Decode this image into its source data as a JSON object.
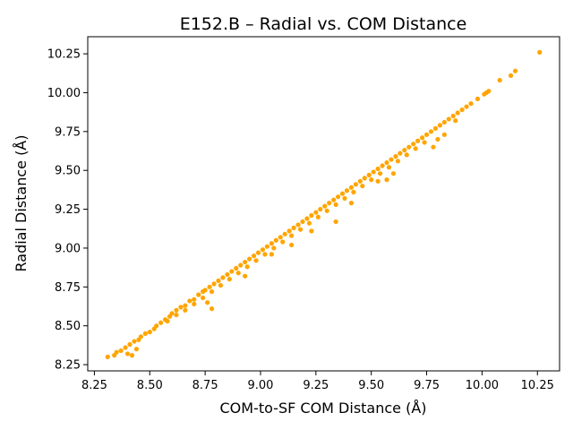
{
  "chart_data": {
    "type": "scatter",
    "title": "E152.B – Radial vs. COM Distance",
    "xlabel": "COM-to-SF COM Distance (Å)",
    "ylabel": "Radial Distance (Å)",
    "xlim": [
      8.22,
      10.35
    ],
    "ylim": [
      8.21,
      10.36
    ],
    "x_ticks": [
      8.25,
      8.5,
      8.75,
      9.0,
      9.25,
      9.5,
      9.75,
      10.0,
      10.25
    ],
    "x_tick_labels": [
      "8.25",
      "8.50",
      "8.75",
      "9.00",
      "9.25",
      "9.50",
      "9.75",
      "10.00",
      "10.25"
    ],
    "y_ticks": [
      8.25,
      8.5,
      8.75,
      9.0,
      9.25,
      9.5,
      9.75,
      10.0,
      10.25
    ],
    "y_tick_labels": [
      "8.25",
      "8.50",
      "8.75",
      "9.00",
      "9.25",
      "9.50",
      "9.75",
      "10.00",
      "10.25"
    ],
    "grid": false,
    "marker_color": "#ffa500",
    "series": [
      {
        "points": [
          [
            8.31,
            8.3
          ],
          [
            8.34,
            8.31
          ],
          [
            8.35,
            8.33
          ],
          [
            8.37,
            8.34
          ],
          [
            8.39,
            8.36
          ],
          [
            8.4,
            8.32
          ],
          [
            8.42,
            8.31
          ],
          [
            8.44,
            8.35
          ],
          [
            8.41,
            8.38
          ],
          [
            8.43,
            8.4
          ],
          [
            8.45,
            8.41
          ],
          [
            8.46,
            8.43
          ],
          [
            8.48,
            8.45
          ],
          [
            8.5,
            8.46
          ],
          [
            8.52,
            8.48
          ],
          [
            8.53,
            8.5
          ],
          [
            8.55,
            8.52
          ],
          [
            8.57,
            8.54
          ],
          [
            8.59,
            8.56
          ],
          [
            8.6,
            8.58
          ],
          [
            8.62,
            8.6
          ],
          [
            8.64,
            8.62
          ],
          [
            8.66,
            8.63
          ],
          [
            8.68,
            8.66
          ],
          [
            8.7,
            8.67
          ],
          [
            8.72,
            8.7
          ],
          [
            8.74,
            8.72
          ],
          [
            8.75,
            8.73
          ],
          [
            8.77,
            8.75
          ],
          [
            8.79,
            8.77
          ],
          [
            8.81,
            8.79
          ],
          [
            8.83,
            8.81
          ],
          [
            8.85,
            8.83
          ],
          [
            8.87,
            8.85
          ],
          [
            8.89,
            8.87
          ],
          [
            8.91,
            8.89
          ],
          [
            8.93,
            8.91
          ],
          [
            8.95,
            8.93
          ],
          [
            8.97,
            8.95
          ],
          [
            8.99,
            8.97
          ],
          [
            9.01,
            8.99
          ],
          [
            9.03,
            9.01
          ],
          [
            9.05,
            9.03
          ],
          [
            9.07,
            9.05
          ],
          [
            9.09,
            9.07
          ],
          [
            9.11,
            9.09
          ],
          [
            9.13,
            9.11
          ],
          [
            9.15,
            9.13
          ],
          [
            9.17,
            9.15
          ],
          [
            9.19,
            9.17
          ],
          [
            9.21,
            9.19
          ],
          [
            9.23,
            9.21
          ],
          [
            9.25,
            9.23
          ],
          [
            9.27,
            9.25
          ],
          [
            9.29,
            9.27
          ],
          [
            9.31,
            9.29
          ],
          [
            9.33,
            9.31
          ],
          [
            9.35,
            9.33
          ],
          [
            9.37,
            9.35
          ],
          [
            9.39,
            9.37
          ],
          [
            9.41,
            9.39
          ],
          [
            9.43,
            9.41
          ],
          [
            9.45,
            9.43
          ],
          [
            9.47,
            9.45
          ],
          [
            9.49,
            9.47
          ],
          [
            9.51,
            9.49
          ],
          [
            9.53,
            9.51
          ],
          [
            9.55,
            9.53
          ],
          [
            9.57,
            9.55
          ],
          [
            9.59,
            9.57
          ],
          [
            9.61,
            9.59
          ],
          [
            9.63,
            9.61
          ],
          [
            9.65,
            9.63
          ],
          [
            9.67,
            9.65
          ],
          [
            9.69,
            9.67
          ],
          [
            9.71,
            9.69
          ],
          [
            9.73,
            9.71
          ],
          [
            9.75,
            9.73
          ],
          [
            9.77,
            9.75
          ],
          [
            9.79,
            9.77
          ],
          [
            9.81,
            9.79
          ],
          [
            9.83,
            9.81
          ],
          [
            9.85,
            9.83
          ],
          [
            9.87,
            9.85
          ],
          [
            9.89,
            9.87
          ],
          [
            9.91,
            9.89
          ],
          [
            9.93,
            9.91
          ],
          [
            9.95,
            9.93
          ],
          [
            9.98,
            9.96
          ],
          [
            10.01,
            9.99
          ],
          [
            10.02,
            10.0
          ],
          [
            10.03,
            10.01
          ],
          [
            10.08,
            10.08
          ],
          [
            10.13,
            10.11
          ],
          [
            10.15,
            10.14
          ],
          [
            10.26,
            10.26
          ],
          [
            8.58,
            8.53
          ],
          [
            8.62,
            8.57
          ],
          [
            8.66,
            8.6
          ],
          [
            8.7,
            8.64
          ],
          [
            8.74,
            8.68
          ],
          [
            8.78,
            8.72
          ],
          [
            8.82,
            8.76
          ],
          [
            8.86,
            8.8
          ],
          [
            8.9,
            8.84
          ],
          [
            8.94,
            8.88
          ],
          [
            8.98,
            8.92
          ],
          [
            9.02,
            8.96
          ],
          [
            9.06,
            9.0
          ],
          [
            9.1,
            9.04
          ],
          [
            9.14,
            9.08
          ],
          [
            9.18,
            9.12
          ],
          [
            9.22,
            9.16
          ],
          [
            9.26,
            9.2
          ],
          [
            9.3,
            9.24
          ],
          [
            9.34,
            9.28
          ],
          [
            9.38,
            9.32
          ],
          [
            9.42,
            9.36
          ],
          [
            9.46,
            9.4
          ],
          [
            9.5,
            9.44
          ],
          [
            9.54,
            9.48
          ],
          [
            9.58,
            9.52
          ],
          [
            9.62,
            9.56
          ],
          [
            9.66,
            9.6
          ],
          [
            9.7,
            9.64
          ],
          [
            9.74,
            9.68
          ],
          [
            8.76,
            8.65
          ],
          [
            8.78,
            8.61
          ],
          [
            8.93,
            8.82
          ],
          [
            9.05,
            8.96
          ],
          [
            9.14,
            9.02
          ],
          [
            9.23,
            9.11
          ],
          [
            9.34,
            9.17
          ],
          [
            9.41,
            9.29
          ],
          [
            9.53,
            9.43
          ],
          [
            9.57,
            9.44
          ],
          [
            9.6,
            9.48
          ],
          [
            9.78,
            9.65
          ],
          [
            9.83,
            9.73
          ],
          [
            9.8,
            9.7
          ],
          [
            9.88,
            9.82
          ]
        ]
      }
    ]
  }
}
